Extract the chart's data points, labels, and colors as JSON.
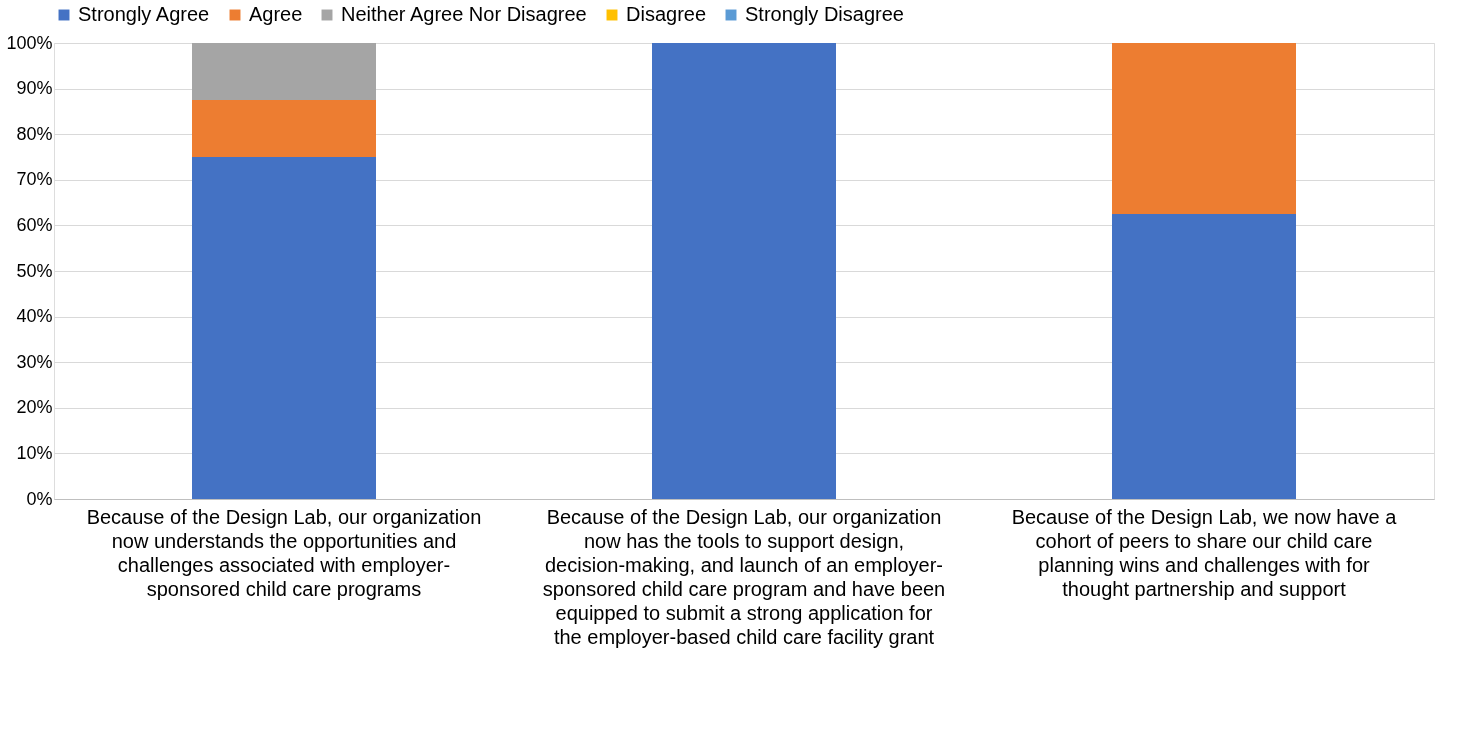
{
  "chart_data": {
    "type": "bar",
    "stacked": true,
    "categories": [
      "Because of the Design Lab, our organization now understands the opportunities and challenges associated with employer-sponsored child care programs",
      "Because of the Design Lab, our organization now has the tools to support design, decision-making, and launch of an employer-sponsored child care program and have been equipped to submit a strong application for the employer-based child care facility grant",
      "Because of the Design Lab, we now have a cohort of peers to share our child care planning wins and challenges with for thought partnership and support"
    ],
    "series": [
      {
        "name": "Strongly Agree",
        "color": "#4472c4",
        "values": [
          75,
          100,
          62.5
        ]
      },
      {
        "name": "Agree",
        "color": "#ed7d31",
        "values": [
          12.5,
          0,
          37.5
        ]
      },
      {
        "name": "Neither Agree Nor Disagree",
        "color": "#a5a5a5",
        "values": [
          12.5,
          0,
          0
        ]
      },
      {
        "name": "Disagree",
        "color": "#ffc000",
        "values": [
          0,
          0,
          0
        ]
      },
      {
        "name": "Strongly Disagree",
        "color": "#5b9bd5",
        "values": [
          0,
          0,
          0
        ]
      }
    ],
    "ylim": [
      0,
      100
    ],
    "yticks": [
      {
        "value": 0,
        "label": "0%"
      },
      {
        "value": 10,
        "label": "10%"
      },
      {
        "value": 20,
        "label": "20%"
      },
      {
        "value": 30,
        "label": "30%"
      },
      {
        "value": 40,
        "label": "40%"
      },
      {
        "value": 50,
        "label": "50%"
      },
      {
        "value": 60,
        "label": "60%"
      },
      {
        "value": 70,
        "label": "70%"
      },
      {
        "value": 80,
        "label": "80%"
      },
      {
        "value": 90,
        "label": "90%"
      },
      {
        "value": 100,
        "label": "100%"
      }
    ],
    "grid": "y",
    "legend": "top"
  }
}
